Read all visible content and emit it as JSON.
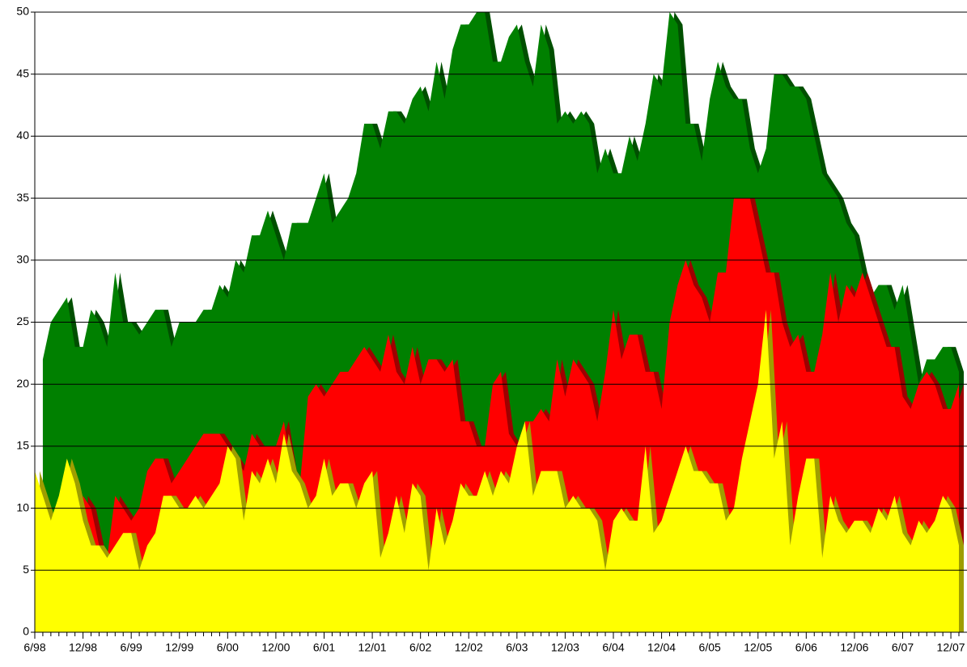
{
  "chart_data": {
    "type": "area",
    "categories": [
      "6/98",
      null,
      null,
      null,
      null,
      null,
      "12/98",
      null,
      null,
      null,
      null,
      null,
      "6/99",
      null,
      null,
      null,
      null,
      null,
      "12/99",
      null,
      null,
      null,
      null,
      null,
      "6/00",
      null,
      null,
      null,
      null,
      null,
      "12/00",
      null,
      null,
      null,
      null,
      null,
      "6/01",
      null,
      null,
      null,
      null,
      null,
      "12/01",
      null,
      null,
      null,
      null,
      null,
      "6/02",
      null,
      null,
      null,
      null,
      null,
      "12/02",
      null,
      null,
      null,
      null,
      null,
      "6/03",
      null,
      null,
      null,
      null,
      null,
      "12/03",
      null,
      null,
      null,
      null,
      null,
      "6/04",
      null,
      null,
      null,
      null,
      null,
      "12/04",
      null,
      null,
      null,
      null,
      null,
      "6/05",
      null,
      null,
      null,
      null,
      null,
      "12/05",
      null,
      null,
      null,
      null,
      null,
      "6/06",
      null,
      null,
      null,
      null,
      null,
      "12/06",
      null,
      null,
      null,
      null,
      null,
      "6/07",
      null,
      null,
      null,
      null,
      null,
      "12/07",
      null
    ],
    "series": [
      {
        "color": "#008000",
        "values": [
          null,
          22,
          25,
          26,
          27,
          23,
          23,
          26,
          25,
          23,
          29,
          25,
          25,
          24,
          25,
          26,
          26,
          23,
          25,
          25,
          25,
          26,
          26,
          28,
          27,
          30,
          29,
          32,
          32,
          34,
          32,
          30,
          33,
          33,
          33,
          35,
          37,
          33,
          34,
          35,
          37,
          41,
          41,
          39,
          42,
          42,
          41,
          43,
          44,
          42,
          46,
          43,
          47,
          49,
          49,
          50,
          50,
          46,
          46,
          48,
          49,
          46,
          44,
          49,
          47,
          41,
          42,
          41,
          42,
          41,
          37,
          39,
          37,
          37,
          40,
          38,
          41,
          45,
          44,
          50,
          49,
          41,
          41,
          38,
          43,
          46,
          44,
          43,
          43,
          39,
          37,
          39,
          45,
          45,
          44,
          44,
          43,
          40,
          37,
          36,
          35,
          33,
          32,
          29,
          27,
          28,
          28,
          26,
          28,
          24,
          20,
          22,
          22,
          23,
          23,
          21
        ]
      },
      {
        "color": "#ff0000",
        "values": [
          null,
          null,
          null,
          null,
          null,
          null,
          11,
          10,
          7,
          6,
          11,
          10,
          9,
          10,
          13,
          14,
          14,
          12,
          13,
          14,
          15,
          16,
          16,
          16,
          15,
          14,
          13,
          16,
          15,
          15,
          15,
          17,
          13,
          12,
          19,
          20,
          19,
          20,
          21,
          21,
          22,
          23,
          22,
          21,
          24,
          21,
          20,
          23,
          20,
          22,
          22,
          21,
          22,
          17,
          17,
          15,
          15,
          20,
          21,
          16,
          15,
          17,
          17,
          18,
          17,
          22,
          19,
          22,
          21,
          20,
          17,
          21,
          26,
          22,
          24,
          24,
          21,
          21,
          18,
          25,
          28,
          30,
          28,
          27,
          25,
          29,
          29,
          35,
          35,
          35,
          32,
          29,
          29,
          25,
          23,
          24,
          21,
          21,
          24,
          29,
          25,
          28,
          27,
          29,
          27,
          25,
          23,
          23,
          19,
          18,
          20,
          21,
          20,
          18,
          18,
          20
        ]
      },
      {
        "color": "#ffff00",
        "values": [
          13,
          11,
          9,
          11,
          14,
          12,
          9,
          7,
          7,
          6,
          7,
          8,
          8,
          5,
          7,
          8,
          11,
          11,
          10,
          10,
          11,
          10,
          11,
          12,
          15,
          14,
          9,
          13,
          12,
          14,
          12,
          16,
          13,
          12,
          10,
          11,
          14,
          11,
          12,
          12,
          10,
          12,
          13,
          6,
          8,
          11,
          8,
          12,
          11,
          5,
          10,
          7,
          9,
          12,
          11,
          11,
          13,
          11,
          13,
          12,
          15,
          17,
          11,
          13,
          13,
          13,
          10,
          11,
          10,
          10,
          9,
          5,
          9,
          10,
          9,
          9,
          15,
          8,
          9,
          11,
          13,
          15,
          13,
          13,
          12,
          12,
          9,
          10,
          14,
          17,
          20,
          26,
          14,
          17,
          7,
          11,
          14,
          14,
          6,
          11,
          9,
          8,
          9,
          9,
          8,
          10,
          9,
          11,
          8,
          7,
          9,
          8,
          9,
          11,
          10,
          7
        ]
      }
    ],
    "ylim": [
      0,
      50
    ],
    "yticks": [
      0,
      5,
      10,
      15,
      20,
      25,
      30,
      35,
      40,
      45,
      50
    ],
    "grid": true
  }
}
